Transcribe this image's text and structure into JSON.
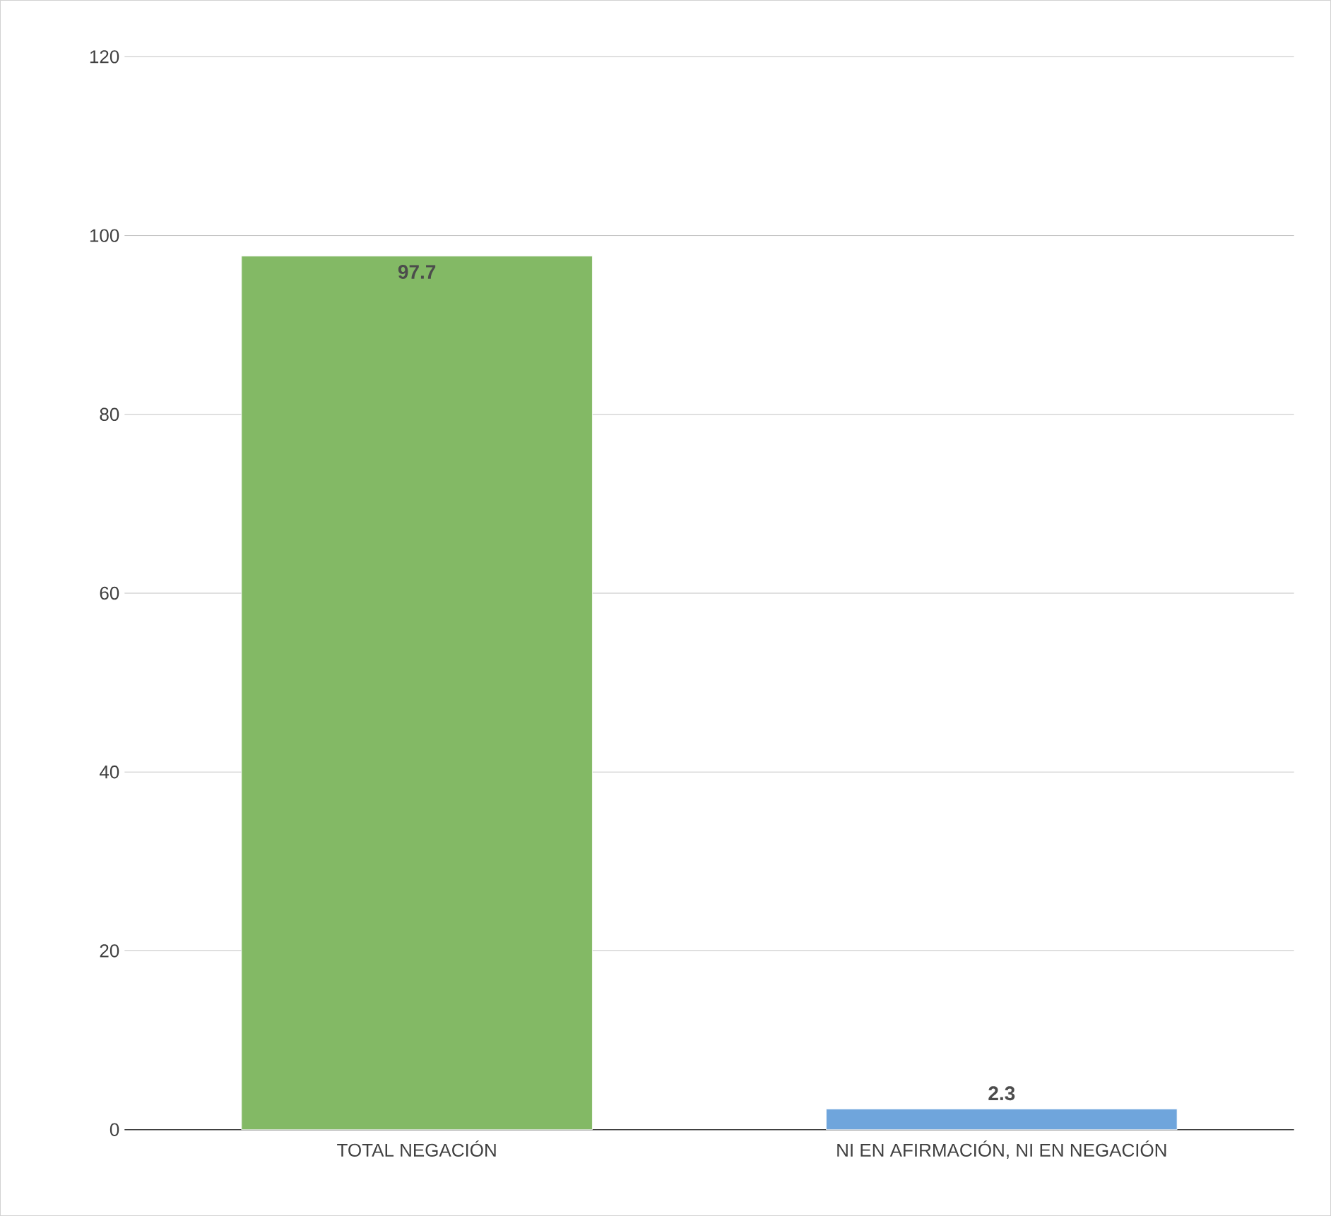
{
  "chart_data": {
    "type": "bar",
    "categories": [
      "TOTAL NEGACIÓN",
      "NI EN AFIRMACIÓN, NI EN NEGACIÓN"
    ],
    "values": [
      97.7,
      2.3
    ],
    "colors": [
      "#83b965",
      "#6fa5dc"
    ],
    "ylim": [
      0,
      120
    ],
    "yticks": [
      0,
      20,
      40,
      60,
      80,
      100,
      120
    ],
    "grid": "y",
    "data_labels": true
  }
}
